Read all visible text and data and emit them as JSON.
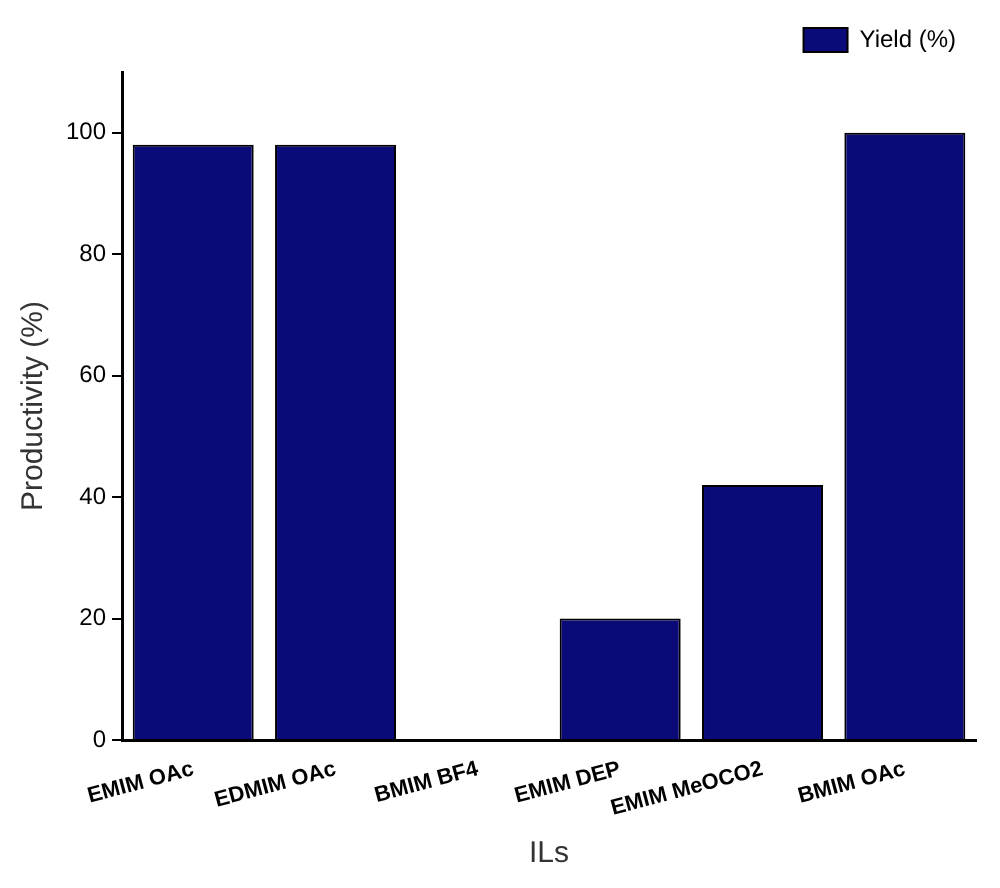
{
  "chart_data": {
    "type": "bar",
    "xlabel": "ILs",
    "ylabel": "Productivity (%)",
    "categories": [
      "EMIM OAc",
      "EDMIM OAc",
      "BMIM BF4",
      "EMIM DEP",
      "EMIM MeOCO2",
      "BMIM OAc"
    ],
    "series": [
      {
        "name": "Yield (%)",
        "color": "#0a0a78",
        "values": [
          98,
          98,
          0,
          20,
          42,
          100
        ]
      }
    ],
    "ylim": [
      0,
      110
    ],
    "yticks": [
      0,
      20,
      40,
      60,
      80,
      100
    ],
    "grid": false,
    "legend": "top right"
  }
}
